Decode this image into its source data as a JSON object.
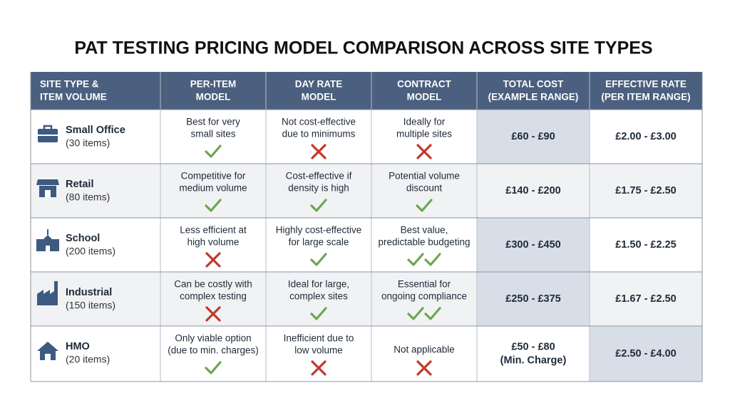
{
  "title": "PAT TESTING PRICING MODEL COMPARISON ACROSS SITE TYPES",
  "table": {
    "header": [
      [
        "SITE TYPE &",
        "ITEM VOLUME"
      ],
      [
        "PER-ITEM",
        "MODEL"
      ],
      [
        "DAY RATE",
        "MODEL"
      ],
      [
        "CONTRACT",
        "MODEL"
      ],
      [
        "TOTAL COST",
        "(EXAMPLE RANGE)"
      ],
      [
        "EFFECTIVE RATE",
        "(PER ITEM RANGE)"
      ]
    ],
    "rows": [
      {
        "name": "Small Office",
        "items": "(30 items)",
        "per_item": [
          "Best for very",
          "small sites"
        ],
        "day_rate": [
          "Not cost-effective",
          "due to minimums"
        ],
        "contract": [
          "Ideally for",
          "multiple sites"
        ],
        "total": [
          "£60 - £90"
        ],
        "rate": "£2.00 - £3.00"
      },
      {
        "name": "Retail",
        "items": "(80 items)",
        "per_item": [
          "Competitive for",
          "medium volume"
        ],
        "day_rate": [
          "Cost-effective if",
          "density is high"
        ],
        "contract": [
          "Potential volume",
          "discount"
        ],
        "total": [
          "£140 - £200"
        ],
        "rate": "£1.75 - £2.50"
      },
      {
        "name": "School",
        "items": "(200 items)",
        "per_item": [
          "Less efficient at",
          "high volume"
        ],
        "day_rate": [
          "Highly cost-effective",
          "for large scale"
        ],
        "contract": [
          "Best value,",
          "predictable budgeting"
        ],
        "total": [
          "£300 - £450"
        ],
        "rate": "£1.50 - £2.25"
      },
      {
        "name": "Industrial",
        "items": "(150 items)",
        "per_item": [
          "Can be costly with",
          "complex testing"
        ],
        "day_rate": [
          "Ideal for large,",
          "complex sites"
        ],
        "contract": [
          "Essential for",
          "ongoing compliance"
        ],
        "total": [
          "£250 - £375"
        ],
        "rate": "£1.67 - £2.50"
      },
      {
        "name": "HMO",
        "items": "(20 items)",
        "per_item": [
          "Only viable option",
          "(due to min. charges)"
        ],
        "day_rate": [
          "Inefficient due to",
          "low volume"
        ],
        "contract": [
          "Not applicable"
        ],
        "total": [
          "£50 - £80",
          "(Min. Charge)"
        ],
        "rate": "£2.50 - £4.00"
      }
    ]
  }
}
